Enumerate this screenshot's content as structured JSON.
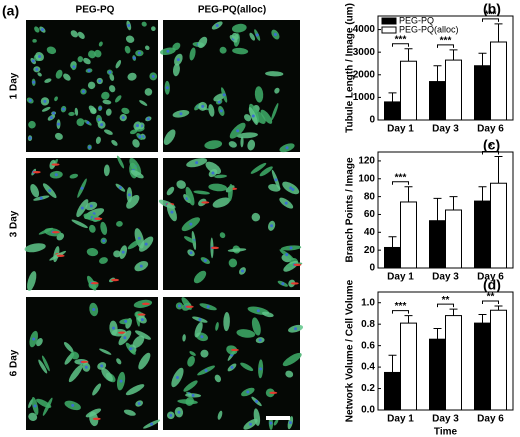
{
  "panel_a": {
    "label": "(a)",
    "columns": [
      "PEG-PQ",
      "PEG-PQ(alloc)"
    ],
    "rows": [
      "1 Day",
      "3 Day",
      "6 Day"
    ]
  },
  "chart_data": [
    {
      "type": "bar",
      "label": "(b)",
      "y_label": "Tubule Length / Image (um)",
      "categories": [
        "Day 1",
        "Day 3",
        "Day 6"
      ],
      "series": [
        {
          "name": "PEG-PQ",
          "color": "#000000",
          "values": [
            800,
            1700,
            2400
          ],
          "errors": [
            400,
            700,
            550
          ]
        },
        {
          "name": "PEG-PQ(alloc)",
          "color": "#ffffff",
          "values": [
            2600,
            2650,
            3450
          ],
          "errors": [
            550,
            450,
            800
          ]
        }
      ],
      "significance": [
        "***",
        "***",
        "***"
      ],
      "ylim": [
        0,
        4600
      ],
      "yticks": [
        0,
        1000,
        2000,
        3000,
        4000
      ],
      "legend": "upper left"
    },
    {
      "type": "bar",
      "label": "(c)",
      "y_label": "Branch Points / Image",
      "categories": [
        "Day 1",
        "Day 3",
        "Day 6"
      ],
      "series": [
        {
          "name": "PEG-PQ",
          "color": "#000000",
          "values": [
            23,
            53,
            75
          ],
          "errors": [
            12,
            25,
            16
          ]
        },
        {
          "name": "PEG-PQ(alloc)",
          "color": "#ffffff",
          "values": [
            74,
            65,
            95
          ],
          "errors": [
            17,
            15,
            30
          ]
        }
      ],
      "significance": [
        "***",
        null,
        "*"
      ],
      "ylim": [
        0,
        130
      ],
      "yticks": [
        0,
        20,
        40,
        60,
        80,
        100,
        120
      ]
    },
    {
      "type": "bar",
      "label": "(d)",
      "y_label": "Network Volume / Cell Volume",
      "x_label": "Time",
      "categories": [
        "Day 1",
        "Day 3",
        "Day 6"
      ],
      "series": [
        {
          "name": "PEG-PQ",
          "color": "#000000",
          "values": [
            0.35,
            0.66,
            0.81
          ],
          "errors": [
            0.16,
            0.1,
            0.08
          ]
        },
        {
          "name": "PEG-PQ(alloc)",
          "color": "#ffffff",
          "values": [
            0.81,
            0.88,
            0.93
          ],
          "errors": [
            0.07,
            0.06,
            0.04
          ]
        }
      ],
      "significance": [
        "***",
        "**",
        "**"
      ],
      "ylim": [
        0,
        1.1
      ],
      "yticks": [
        {
          "value": 0,
          "label": "0.0"
        },
        0.2,
        0.4,
        0.6,
        0.8,
        {
          "value": 1,
          "label": "1.0"
        }
      ]
    }
  ]
}
